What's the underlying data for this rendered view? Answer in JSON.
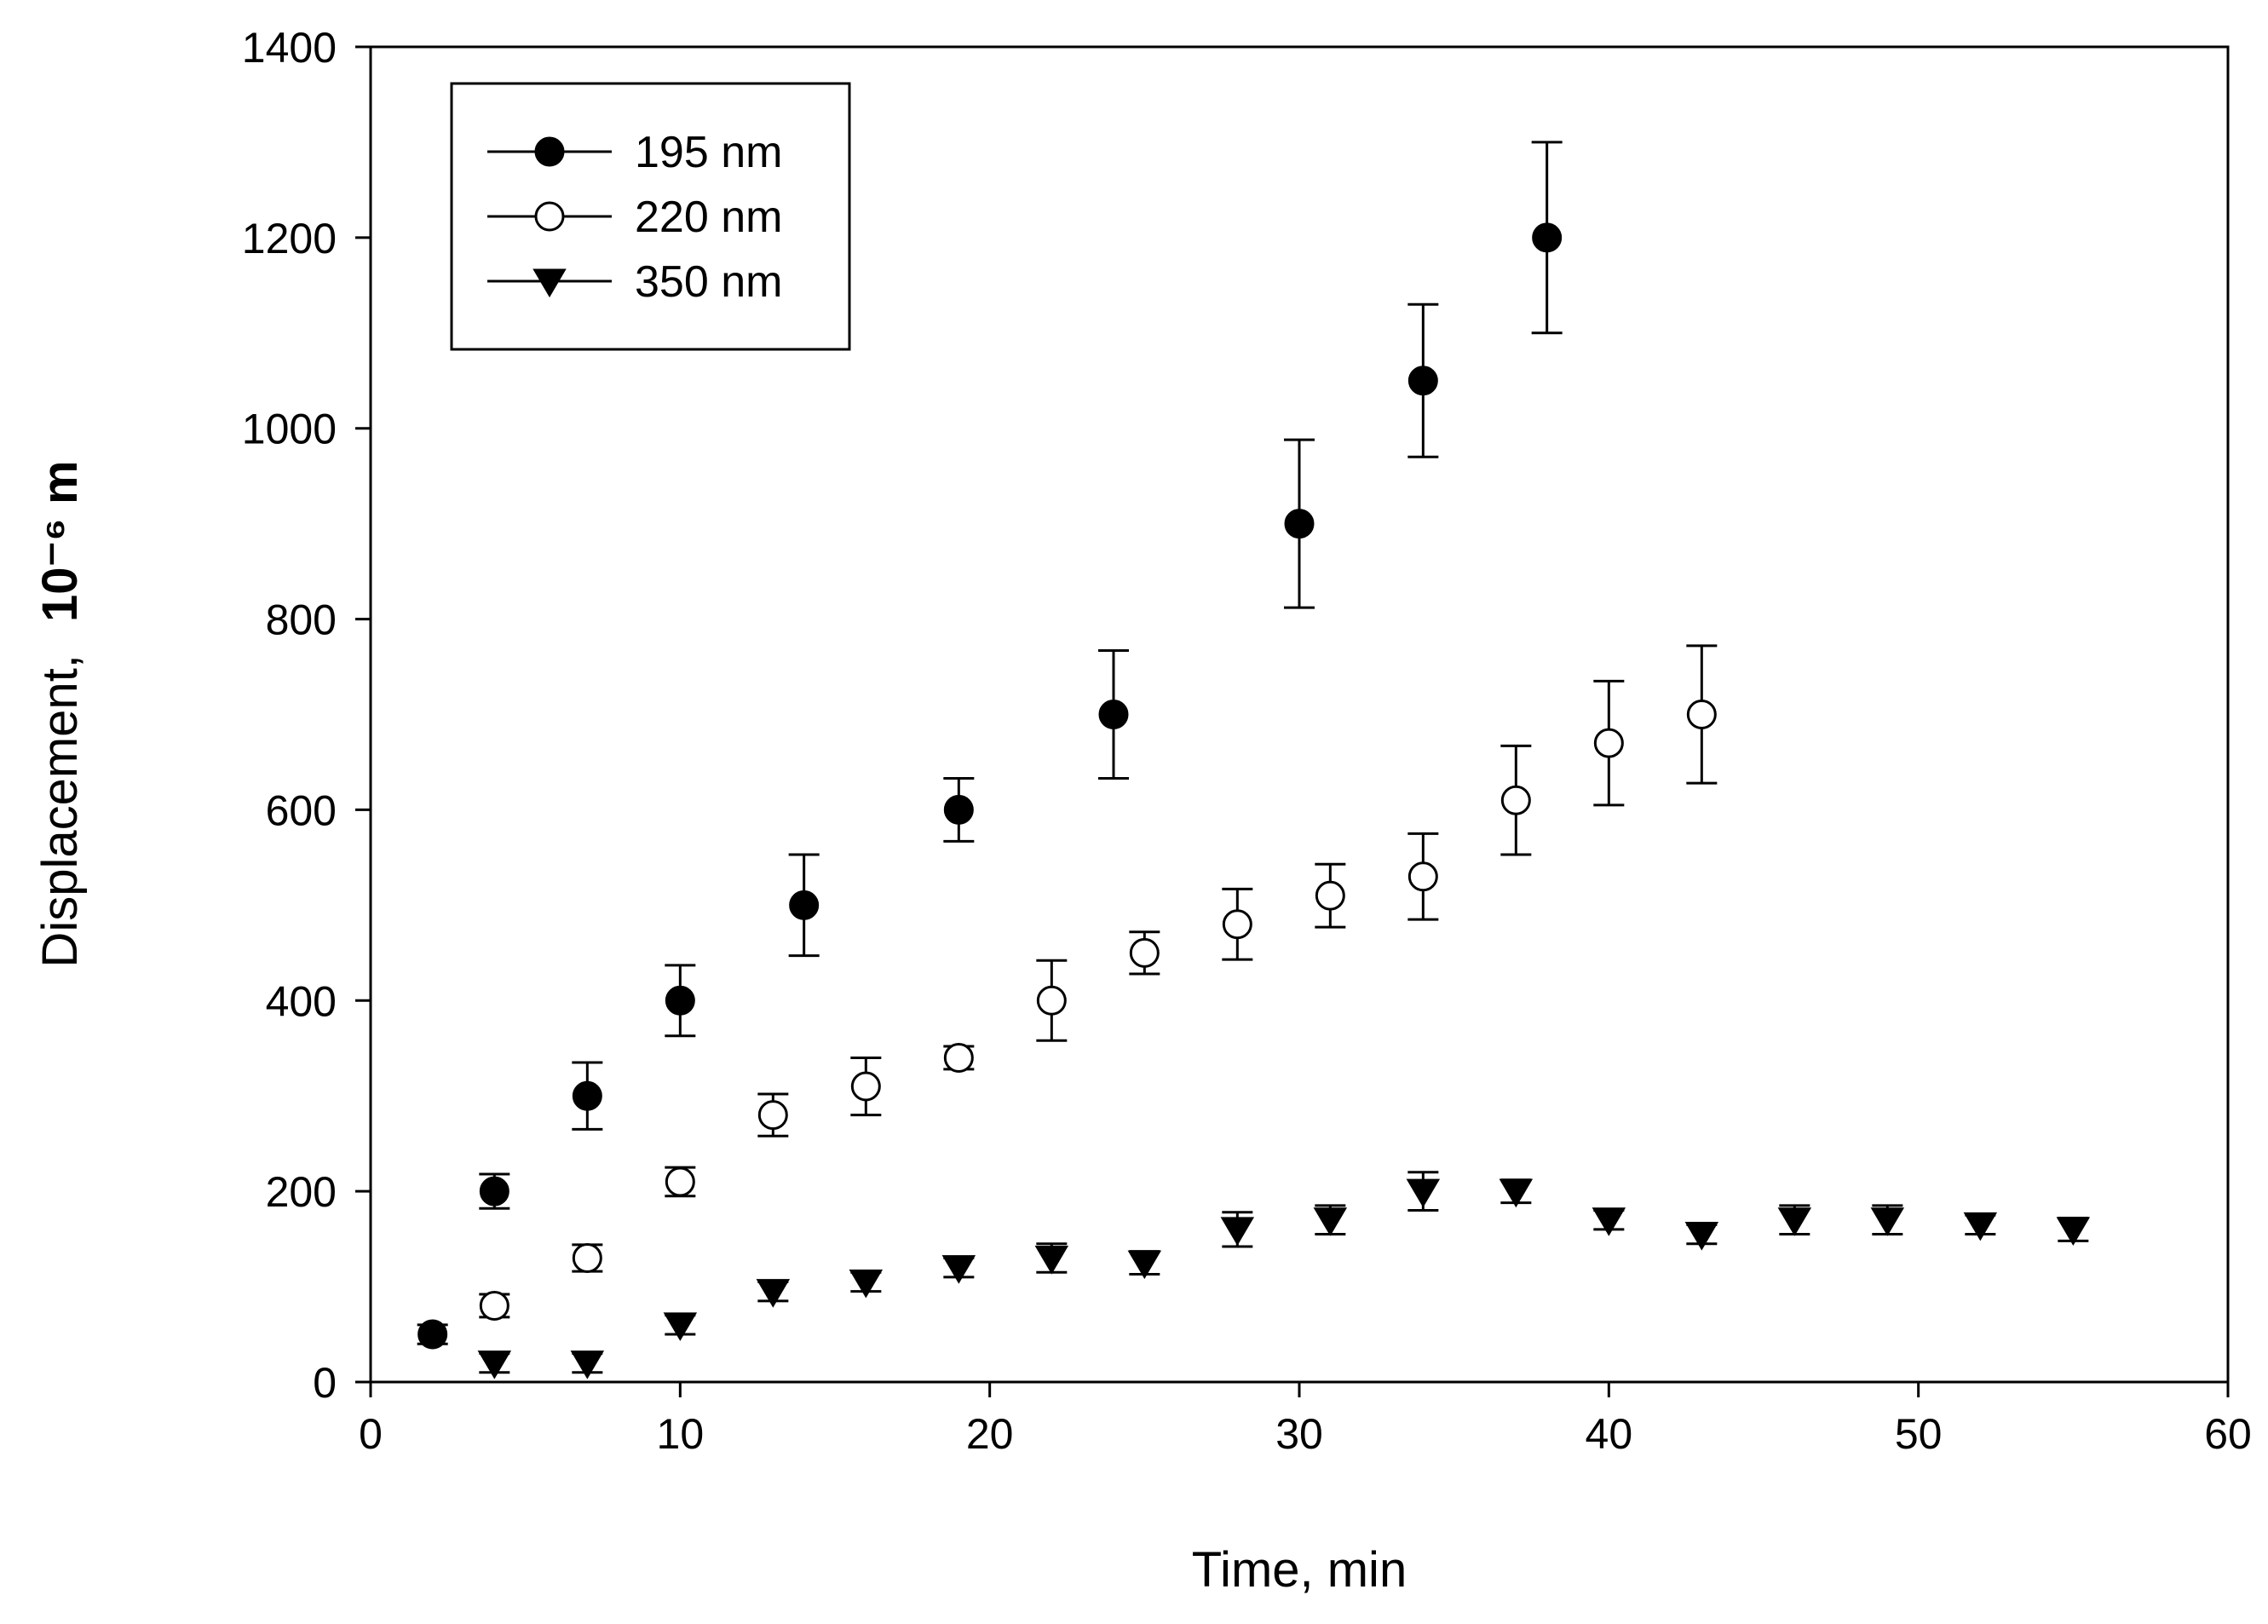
{
  "chart_data": {
    "type": "scatter",
    "title": "",
    "xlabel": "Time, min",
    "ylabel": "Displacement,",
    "ylabel_unit": "10⁻⁶ m",
    "xlim": [
      0,
      60
    ],
    "ylim": [
      0,
      1400
    ],
    "xticks": [
      0,
      10,
      20,
      30,
      40,
      50,
      60
    ],
    "xtick_labels": [
      "0",
      "10",
      "20",
      "30",
      "40",
      "50",
      "60"
    ],
    "yticks": [
      0,
      200,
      400,
      600,
      800,
      1000,
      1200,
      1400
    ],
    "ytick_labels": [
      "0",
      "200",
      "400",
      "600",
      "800",
      "1000",
      "1200",
      "1400"
    ],
    "grid": false,
    "legend_position": "top-left",
    "series": [
      {
        "name": "195 nm",
        "marker": "filled-circle",
        "color": "#000000",
        "points": [
          {
            "x": 2,
            "y": 50,
            "err": 10
          },
          {
            "x": 4,
            "y": 200,
            "err": 18
          },
          {
            "x": 7,
            "y": 300,
            "err": 35
          },
          {
            "x": 10,
            "y": 400,
            "err": 37
          },
          {
            "x": 14,
            "y": 500,
            "err": 53
          },
          {
            "x": 19,
            "y": 600,
            "err": 33
          },
          {
            "x": 24,
            "y": 700,
            "err": 67
          },
          {
            "x": 30,
            "y": 900,
            "err": 88
          },
          {
            "x": 34,
            "y": 1050,
            "err": 80
          },
          {
            "x": 38,
            "y": 1200,
            "err": 100
          }
        ]
      },
      {
        "name": "220 nm",
        "marker": "open-circle",
        "color": "#000000",
        "points": [
          {
            "x": 4,
            "y": 80,
            "err": 12
          },
          {
            "x": 7,
            "y": 130,
            "err": 14
          },
          {
            "x": 10,
            "y": 210,
            "err": 15
          },
          {
            "x": 13,
            "y": 280,
            "err": 22
          },
          {
            "x": 16,
            "y": 310,
            "err": 30
          },
          {
            "x": 19,
            "y": 340,
            "err": 12
          },
          {
            "x": 22,
            "y": 400,
            "err": 42
          },
          {
            "x": 25,
            "y": 450,
            "err": 22
          },
          {
            "x": 28,
            "y": 480,
            "err": 37
          },
          {
            "x": 31,
            "y": 510,
            "err": 33
          },
          {
            "x": 34,
            "y": 530,
            "err": 45
          },
          {
            "x": 37,
            "y": 610,
            "err": 57
          },
          {
            "x": 40,
            "y": 670,
            "err": 65
          },
          {
            "x": 43,
            "y": 700,
            "err": 72
          }
        ]
      },
      {
        "name": "350 nm",
        "marker": "filled-triangle-down",
        "color": "#000000",
        "points": [
          {
            "x": 4,
            "y": 20,
            "err": 10
          },
          {
            "x": 7,
            "y": 20,
            "err": 10
          },
          {
            "x": 10,
            "y": 60,
            "err": 10
          },
          {
            "x": 13,
            "y": 95,
            "err": 10
          },
          {
            "x": 16,
            "y": 105,
            "err": 10
          },
          {
            "x": 19,
            "y": 120,
            "err": 10
          },
          {
            "x": 22,
            "y": 130,
            "err": 15
          },
          {
            "x": 25,
            "y": 125,
            "err": 12
          },
          {
            "x": 28,
            "y": 160,
            "err": 18
          },
          {
            "x": 31,
            "y": 170,
            "err": 15
          },
          {
            "x": 34,
            "y": 200,
            "err": 20
          },
          {
            "x": 37,
            "y": 200,
            "err": 12
          },
          {
            "x": 40,
            "y": 170,
            "err": 10
          },
          {
            "x": 43,
            "y": 155,
            "err": 10
          },
          {
            "x": 46,
            "y": 170,
            "err": 15
          },
          {
            "x": 49,
            "y": 170,
            "err": 15
          },
          {
            "x": 52,
            "y": 165,
            "err": 10
          },
          {
            "x": 55,
            "y": 160,
            "err": 12
          }
        ]
      }
    ]
  }
}
